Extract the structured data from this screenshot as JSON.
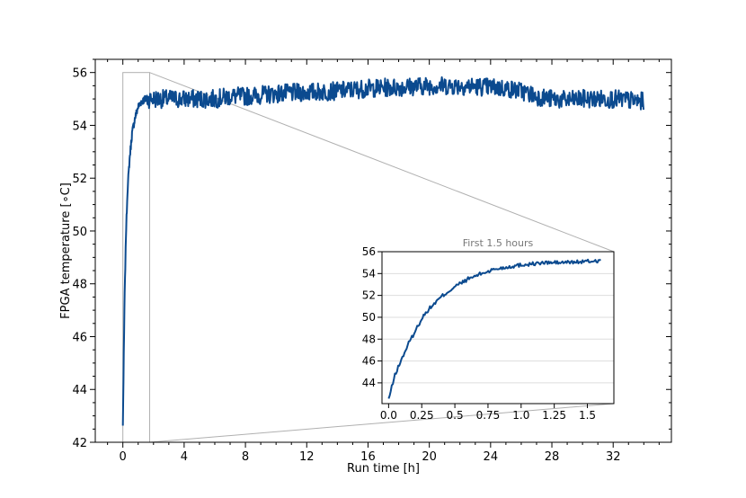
{
  "chart_data": {
    "type": "line",
    "title": "",
    "xlabel": "Run time [h]",
    "ylabel": "FPGA temperature [∘C]",
    "xlim": [
      -1.8,
      35.8
    ],
    "ylim": [
      42,
      56.5
    ],
    "xticks": [
      0,
      4,
      8,
      12,
      16,
      20,
      24,
      28,
      32
    ],
    "yticks": [
      42,
      44,
      46,
      48,
      50,
      52,
      54,
      56
    ],
    "grid": false,
    "line_color": "#0b4a8f",
    "series": [
      {
        "name": "",
        "x": [
          0.0,
          0.1,
          0.2,
          0.3,
          0.45,
          0.6,
          0.8,
          1.0,
          1.2,
          1.5,
          2,
          3,
          4,
          5,
          6,
          7,
          8,
          10,
          12,
          14,
          16,
          18,
          20,
          22,
          24,
          25,
          26,
          27,
          28,
          29,
          30,
          31,
          32,
          33,
          34
        ],
        "y": [
          42.6,
          47.0,
          49.8,
          51.5,
          52.8,
          53.7,
          54.3,
          54.7,
          54.9,
          55.0,
          55.0,
          55.0,
          55.0,
          55.0,
          55.0,
          55.1,
          55.1,
          55.2,
          55.25,
          55.3,
          55.4,
          55.45,
          55.5,
          55.5,
          55.45,
          55.4,
          55.3,
          55.1,
          55.0,
          54.95,
          55.0,
          55.0,
          55.0,
          54.95,
          54.9
        ]
      }
    ],
    "zoom_box": {
      "x": [
        0,
        1.75
      ],
      "y": [
        42,
        56
      ]
    },
    "inset": {
      "title": "First 1.5 hours",
      "xlim": [
        -0.05,
        1.7
      ],
      "ylim": [
        42.1,
        56
      ],
      "xticks": [
        0.0,
        0.25,
        0.5,
        0.75,
        1.0,
        1.25,
        1.5
      ],
      "xtick_labels": [
        "0.0",
        "0.25",
        "0.5",
        "0.75",
        "1.0",
        "1.25",
        "1.5"
      ],
      "yticks": [
        44,
        46,
        48,
        50,
        52,
        54,
        56
      ],
      "grid": "horizontal",
      "series": [
        {
          "name": "",
          "x": [
            0.0,
            0.05,
            0.1,
            0.15,
            0.2,
            0.25,
            0.3,
            0.35,
            0.4,
            0.5,
            0.6,
            0.7,
            0.8,
            0.9,
            1.0,
            1.1,
            1.2,
            1.3,
            1.4,
            1.5,
            1.6
          ],
          "y": [
            42.5,
            44.8,
            46.2,
            47.6,
            48.7,
            49.9,
            50.7,
            51.3,
            51.9,
            52.8,
            53.5,
            54.0,
            54.4,
            54.6,
            54.8,
            54.9,
            55.0,
            55.0,
            55.05,
            55.1,
            55.2
          ]
        }
      ]
    }
  }
}
